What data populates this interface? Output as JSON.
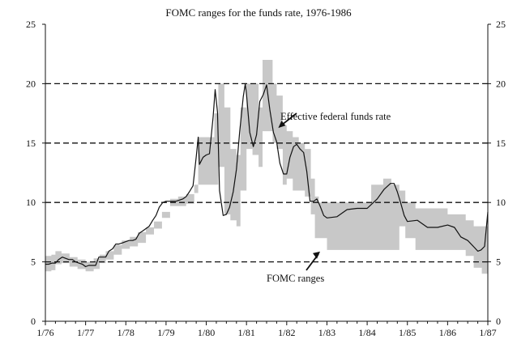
{
  "chart_data": {
    "type": "line",
    "title": "FOMC ranges for the funds rate, 1976-1986",
    "xlabel": "",
    "ylabel": "",
    "x_ticks": [
      "1/76",
      "1/77",
      "1/78",
      "1/79",
      "1/80",
      "1/81",
      "1/82",
      "1/83",
      "1/84",
      "1/85",
      "1/86",
      "1/87"
    ],
    "xlim": [
      1976.0,
      1987.0
    ],
    "ylim": [
      0,
      25
    ],
    "y_ticks": [
      0,
      5,
      10,
      15,
      20,
      25
    ],
    "dashed_gridlines": [
      5,
      10,
      15,
      20
    ],
    "series": [
      {
        "name": "FOMC ranges",
        "kind": "band",
        "color": "#c8c8c8",
        "x": [
          1976.0,
          1976.15,
          1976.25,
          1976.4,
          1976.6,
          1976.8,
          1977.0,
          1977.2,
          1977.35,
          1977.5,
          1977.7,
          1977.9,
          1978.1,
          1978.3,
          1978.5,
          1978.7,
          1978.9,
          1979.1,
          1979.3,
          1979.5,
          1979.7,
          1979.8,
          1979.9,
          1980.1,
          1980.2,
          1980.3,
          1980.45,
          1980.6,
          1980.75,
          1980.85,
          1981.0,
          1981.15,
          1981.3,
          1981.4,
          1981.5,
          1981.65,
          1981.75,
          1981.9,
          1982.0,
          1982.15,
          1982.3,
          1982.45,
          1982.6,
          1982.7,
          1982.8,
          1983.0,
          1983.3,
          1983.6,
          1983.9,
          1984.1,
          1984.25,
          1984.4,
          1984.6,
          1984.8,
          1984.95,
          1985.2,
          1985.5,
          1985.8,
          1986.0,
          1986.25,
          1986.45,
          1986.65,
          1986.85,
          1987.0
        ],
        "low": [
          4.2,
          4.3,
          4.8,
          4.9,
          4.6,
          4.4,
          4.2,
          4.4,
          4.9,
          5.2,
          5.6,
          6.1,
          6.3,
          6.6,
          7.3,
          7.8,
          8.7,
          9.7,
          9.7,
          9.9,
          10.8,
          11.5,
          11.5,
          11.5,
          11.5,
          13.0,
          9.0,
          8.5,
          8.0,
          11.0,
          14.5,
          14.0,
          13.0,
          16.0,
          16.0,
          15.0,
          14.5,
          11.5,
          12.0,
          11.0,
          11.0,
          10.5,
          9.0,
          7.0,
          7.0,
          6.0,
          6.0,
          6.0,
          6.0,
          6.0,
          6.0,
          6.0,
          6.0,
          8.0,
          7.0,
          6.0,
          6.0,
          6.0,
          6.0,
          6.0,
          5.5,
          4.5,
          4.0,
          4.0
        ],
        "high": [
          5.5,
          5.6,
          5.9,
          5.7,
          5.4,
          5.2,
          5.0,
          5.3,
          5.6,
          5.9,
          6.4,
          6.8,
          7.1,
          7.5,
          7.9,
          8.4,
          9.2,
          10.3,
          10.5,
          10.7,
          11.5,
          15.5,
          15.5,
          15.5,
          17.5,
          20.0,
          18.0,
          14.5,
          14.0,
          18.0,
          20.0,
          20.0,
          18.0,
          22.0,
          22.0,
          20.0,
          19.0,
          16.5,
          16.0,
          15.5,
          15.0,
          14.5,
          12.0,
          10.5,
          10.0,
          10.0,
          10.0,
          10.0,
          10.0,
          11.5,
          11.5,
          12.0,
          11.5,
          11.0,
          10.0,
          9.5,
          9.5,
          9.5,
          9.0,
          9.0,
          8.5,
          8.0,
          8.0,
          8.0
        ]
      },
      {
        "name": "Effective federal funds rate",
        "kind": "line",
        "color": "#111111",
        "x": [
          1976.0,
          1976.08,
          1976.17,
          1976.25,
          1976.33,
          1976.42,
          1976.5,
          1976.58,
          1976.67,
          1976.75,
          1976.83,
          1976.92,
          1977.0,
          1977.08,
          1977.17,
          1977.25,
          1977.33,
          1977.42,
          1977.5,
          1977.58,
          1977.67,
          1977.75,
          1977.83,
          1977.92,
          1978.0,
          1978.08,
          1978.17,
          1978.25,
          1978.33,
          1978.42,
          1978.5,
          1978.58,
          1978.67,
          1978.75,
          1978.83,
          1978.92,
          1979.0,
          1979.08,
          1979.17,
          1979.25,
          1979.33,
          1979.42,
          1979.5,
          1979.58,
          1979.67,
          1979.75,
          1979.8,
          1979.83,
          1979.92,
          1980.0,
          1980.08,
          1980.17,
          1980.22,
          1980.28,
          1980.33,
          1980.42,
          1980.5,
          1980.58,
          1980.67,
          1980.75,
          1980.83,
          1980.92,
          1980.97,
          1981.0,
          1981.08,
          1981.17,
          1981.25,
          1981.33,
          1981.42,
          1981.5,
          1981.58,
          1981.67,
          1981.75,
          1981.83,
          1981.92,
          1982.0,
          1982.08,
          1982.17,
          1982.25,
          1982.33,
          1982.42,
          1982.5,
          1982.58,
          1982.67,
          1982.75,
          1982.83,
          1982.92,
          1983.0,
          1983.25,
          1983.5,
          1983.75,
          1984.0,
          1984.25,
          1984.42,
          1984.58,
          1984.67,
          1984.75,
          1984.83,
          1984.92,
          1985.0,
          1985.25,
          1985.5,
          1985.75,
          1986.0,
          1986.17,
          1986.33,
          1986.5,
          1986.67,
          1986.75,
          1986.83,
          1986.92,
          1987.0
        ],
        "y": [
          4.8,
          4.8,
          4.9,
          4.9,
          5.2,
          5.4,
          5.3,
          5.2,
          5.2,
          5.0,
          4.9,
          4.8,
          4.6,
          4.7,
          4.7,
          4.7,
          5.4,
          5.4,
          5.4,
          5.9,
          6.1,
          6.5,
          6.5,
          6.6,
          6.7,
          6.8,
          6.8,
          6.9,
          7.4,
          7.6,
          7.8,
          8.0,
          8.5,
          8.9,
          9.6,
          10.0,
          10.1,
          10.1,
          10.1,
          10.1,
          10.2,
          10.3,
          10.5,
          10.9,
          11.4,
          13.8,
          15.5,
          13.2,
          13.8,
          14.0,
          14.1,
          17.2,
          19.5,
          17.6,
          11.0,
          8.9,
          9.0,
          9.6,
          10.9,
          12.8,
          15.9,
          18.9,
          20.0,
          19.1,
          15.9,
          14.7,
          15.7,
          18.5,
          19.1,
          19.9,
          17.8,
          15.9,
          15.1,
          13.3,
          12.4,
          12.4,
          13.8,
          14.7,
          14.9,
          14.5,
          14.2,
          12.6,
          10.1,
          10.1,
          10.3,
          9.7,
          8.9,
          8.7,
          8.8,
          9.4,
          9.5,
          9.5,
          10.3,
          11.1,
          11.6,
          11.6,
          10.9,
          10.0,
          8.9,
          8.4,
          8.5,
          7.9,
          7.9,
          8.1,
          7.9,
          7.1,
          6.8,
          6.2,
          5.9,
          6.0,
          6.3,
          9.2
        ]
      }
    ],
    "annotations": [
      {
        "text": "Effective federal funds rate",
        "points_to": [
          1981.75,
          16.2
        ]
      },
      {
        "text": "FOMC ranges",
        "points_to": [
          1982.85,
          6.0
        ]
      }
    ]
  }
}
